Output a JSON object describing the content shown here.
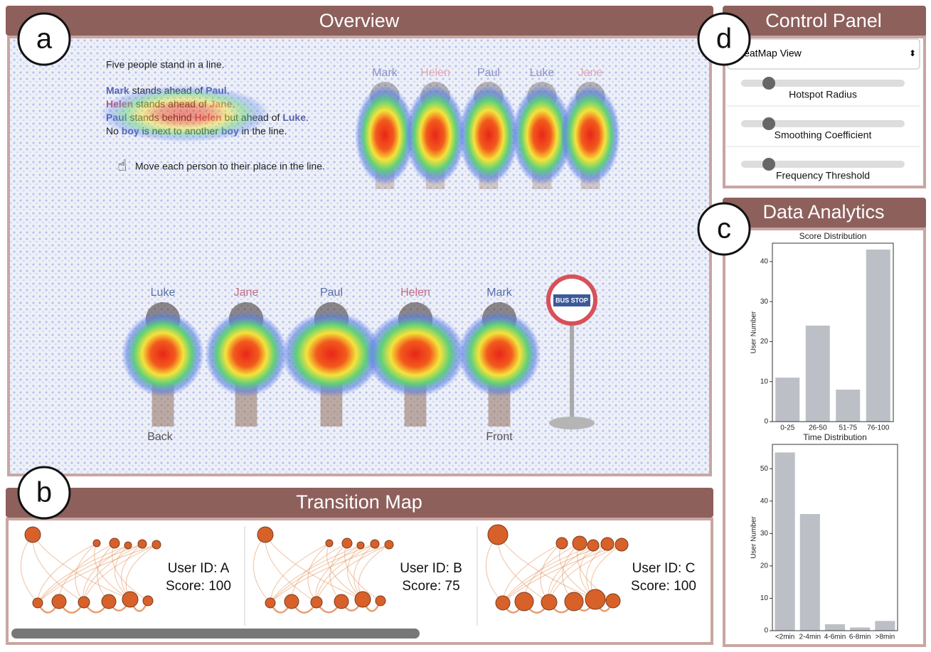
{
  "panel_labels": [
    "a",
    "b",
    "c",
    "d"
  ],
  "overview": {
    "title": "Overview",
    "intro": "Five people stand in a line.",
    "clues": [
      [
        {
          "text": "Mark",
          "color": "#5562b0"
        },
        {
          "text": " stands ahead of "
        },
        {
          "text": "Paul",
          "color": "#5562b0"
        },
        {
          "text": "."
        }
      ],
      [
        {
          "text": "Helen",
          "color": "#c2557a"
        },
        {
          "text": " stands ahead of "
        },
        {
          "text": "Jane",
          "color": "#c2557a"
        },
        {
          "text": "."
        }
      ],
      [
        {
          "text": "Paul",
          "color": "#5562b0"
        },
        {
          "text": " stands behind "
        },
        {
          "text": "Helen",
          "color": "#c2557a"
        },
        {
          "text": " but ahead of "
        },
        {
          "text": "Luke",
          "color": "#5562b0"
        },
        {
          "text": "."
        }
      ],
      [
        {
          "text": "No "
        },
        {
          "text": "boy",
          "color": "#5562b0"
        },
        {
          "text": " is next to another "
        },
        {
          "text": "boy",
          "color": "#5562b0"
        },
        {
          "text": " in the line."
        }
      ]
    ],
    "instruction": "Move each person to their place in the line.",
    "top_names": [
      {
        "name": "Mark",
        "color": "#8a93c8"
      },
      {
        "name": "Helen",
        "color": "#e2a6b6"
      },
      {
        "name": "Paul",
        "color": "#8a93c8"
      },
      {
        "name": "Luke",
        "color": "#8a93c8"
      },
      {
        "name": "Jane",
        "color": "#e2a6b6"
      }
    ],
    "bottom_names": [
      {
        "name": "Luke",
        "color": "#5a6fa8"
      },
      {
        "name": "Jane",
        "color": "#c46b84"
      },
      {
        "name": "Paul",
        "color": "#5a6fa8"
      },
      {
        "name": "Helen",
        "color": "#c46b84"
      },
      {
        "name": "Mark",
        "color": "#5a6fa8"
      }
    ],
    "back": "Back",
    "front": "Front",
    "sign": "BUS STOP"
  },
  "transition_map": {
    "title": "Transition Map",
    "users": [
      {
        "id": "User ID: A",
        "score": "Score: 100"
      },
      {
        "id": "User ID: B",
        "score": "Score: 75"
      },
      {
        "id": "User ID: C",
        "score": "Score: 100"
      }
    ]
  },
  "control_panel": {
    "title": "Control Panel",
    "view": "HeatMap View",
    "sliders": [
      "Hotspot Radius",
      "Smoothing Coefficient",
      "Frequency Threshold"
    ]
  },
  "data_analytics": {
    "title": "Data Analytics"
  },
  "chart_data": [
    {
      "type": "bar",
      "title": "Score Distribution",
      "y_label": "User Number",
      "categories": [
        "0-25",
        "26-50",
        "51-75",
        "76-100"
      ],
      "values": [
        11,
        24,
        8,
        43
      ],
      "color": "#bcc0c6",
      "ylim": [
        0,
        44.6
      ],
      "yticks": [
        0,
        10,
        20,
        30,
        40
      ]
    },
    {
      "type": "bar",
      "title": "Time Distribution",
      "y_label": "User Number",
      "categories": [
        "<2min",
        "2-4min",
        "4-6min",
        "6-8min",
        ">8min"
      ],
      "values": [
        55,
        36,
        2,
        1,
        3
      ],
      "color": "#bcc0c6",
      "ylim": [
        0,
        57.5
      ],
      "yticks": [
        0,
        10,
        20,
        30,
        40,
        50
      ]
    }
  ]
}
